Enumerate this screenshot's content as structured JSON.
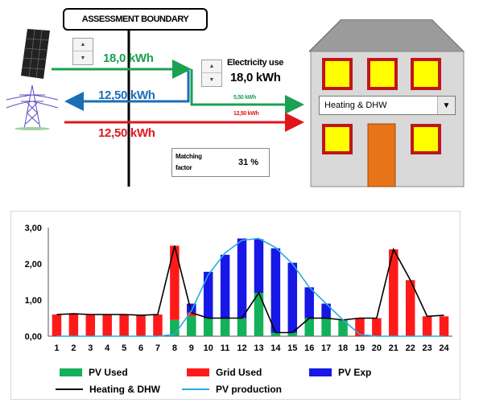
{
  "boundary": {
    "title": "ASSESSMENT BOUNDARY"
  },
  "flows": {
    "pv_generation": "18,0 kWh",
    "grid_export": "12,50 kWh",
    "grid_import": "12,50 kWh",
    "pv_to_load": "5,50 kWh",
    "grid_to_load": "12,50 kWh"
  },
  "electricity": {
    "label": "Electricity use",
    "value": "18,0 kWh"
  },
  "dropdown": {
    "selected": "Heating & DHW"
  },
  "matching": {
    "label": "Matching factor",
    "value": "31 %"
  },
  "colors": {
    "green": "#1aa152",
    "blue": "#1a6fb8",
    "red": "#e0161d",
    "bar_green": "#14b05a",
    "bar_red": "#ff1a1a",
    "bar_blue": "#1717e6",
    "line_black": "#000000",
    "line_cyan": "#29abe2",
    "window_yellow": "#ffff00",
    "window_frame": "#c0151b",
    "door": "#e8741a"
  },
  "legend": {
    "pv_used": "PV Used",
    "grid_used": "Grid Used",
    "pv_exp": "PV Exp",
    "heating": "Heating & DHW",
    "pv_production": "PV production"
  },
  "chart_data": {
    "type": "bar",
    "stacked": true,
    "categories": [
      "1",
      "2",
      "3",
      "4",
      "5",
      "6",
      "7",
      "8",
      "9",
      "10",
      "11",
      "12",
      "13",
      "14",
      "15",
      "16",
      "17",
      "18",
      "19",
      "20",
      "21",
      "22",
      "23",
      "24"
    ],
    "ylim": [
      0,
      3
    ],
    "y_ticks": [
      "0,00",
      "1,00",
      "2,00",
      "3,00"
    ],
    "series": [
      {
        "name": "PV Used",
        "values": [
          0,
          0,
          0,
          0,
          0,
          0,
          0,
          0.45,
          0.55,
          0.5,
          0.5,
          0.5,
          1.2,
          0.1,
          0.1,
          0.5,
          0.5,
          0.45,
          0,
          0,
          0,
          0,
          0,
          0
        ]
      },
      {
        "name": "Grid Used",
        "values": [
          0.6,
          0.6,
          0.6,
          0.6,
          0.6,
          0.6,
          0.6,
          2.05,
          0.1,
          0,
          0,
          0,
          0,
          0,
          0,
          0,
          0,
          0,
          0.5,
          0.5,
          2.4,
          1.55,
          0.55,
          0.55
        ]
      },
      {
        "name": "PV Exp",
        "values": [
          0,
          0,
          0,
          0,
          0,
          0,
          0,
          0,
          0.25,
          1.28,
          1.75,
          2.2,
          1.48,
          2.33,
          1.93,
          0.85,
          0.4,
          0,
          0,
          0,
          0,
          0,
          0,
          0
        ]
      },
      {
        "name": "Heating & DHW",
        "type": "line",
        "values": [
          0.6,
          0.62,
          0.6,
          0.6,
          0.6,
          0.58,
          0.6,
          2.5,
          0.65,
          0.5,
          0.5,
          0.5,
          1.2,
          0.1,
          0.1,
          0.5,
          0.5,
          0.45,
          0.5,
          0.5,
          2.4,
          1.55,
          0.55,
          0.58
        ]
      },
      {
        "name": "PV production",
        "type": "line",
        "values": [
          0,
          0,
          0,
          0,
          0,
          0,
          0,
          0.05,
          0.7,
          1.7,
          2.3,
          2.65,
          2.7,
          2.45,
          2.0,
          1.35,
          0.9,
          0.45,
          0.05,
          0,
          0,
          0,
          0,
          0
        ]
      }
    ]
  }
}
